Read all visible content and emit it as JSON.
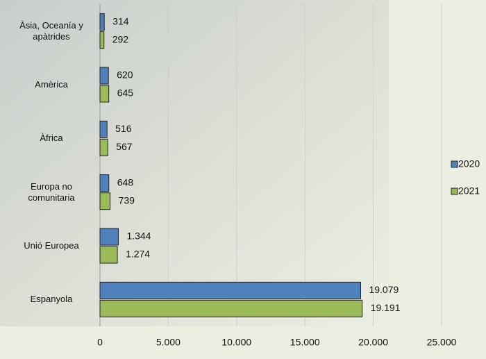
{
  "chart_data": {
    "type": "hbar",
    "categories": [
      "Àsia, Oceanía y apàtrides",
      "Amèrica",
      "Àfrica",
      "Europa no comunitaria",
      "Unió Europea",
      "Espanyola"
    ],
    "series": [
      {
        "name": "2020",
        "color": "#4f81bd",
        "values": [
          314,
          620,
          516,
          648,
          1344,
          19079
        ],
        "value_labels": [
          "314",
          "620",
          "516",
          "648",
          "1.344",
          "19.079"
        ]
      },
      {
        "name": "2021",
        "color": "#9bbb59",
        "values": [
          292,
          645,
          567,
          739,
          1274,
          19191
        ],
        "value_labels": [
          "292",
          "645",
          "567",
          "739",
          "1.274",
          "19.191"
        ]
      }
    ],
    "xlim": [
      0,
      25000
    ],
    "xticks": [
      0,
      {
        "value": 5000,
        "label": "5.000"
      },
      {
        "value": 10000,
        "label": "10.000"
      },
      {
        "value": 15000,
        "label": "15.000"
      },
      {
        "value": 20000,
        "label": "20.000"
      },
      {
        "value": 25000,
        "label": "25.000"
      }
    ],
    "grid": true,
    "legend": "right"
  }
}
